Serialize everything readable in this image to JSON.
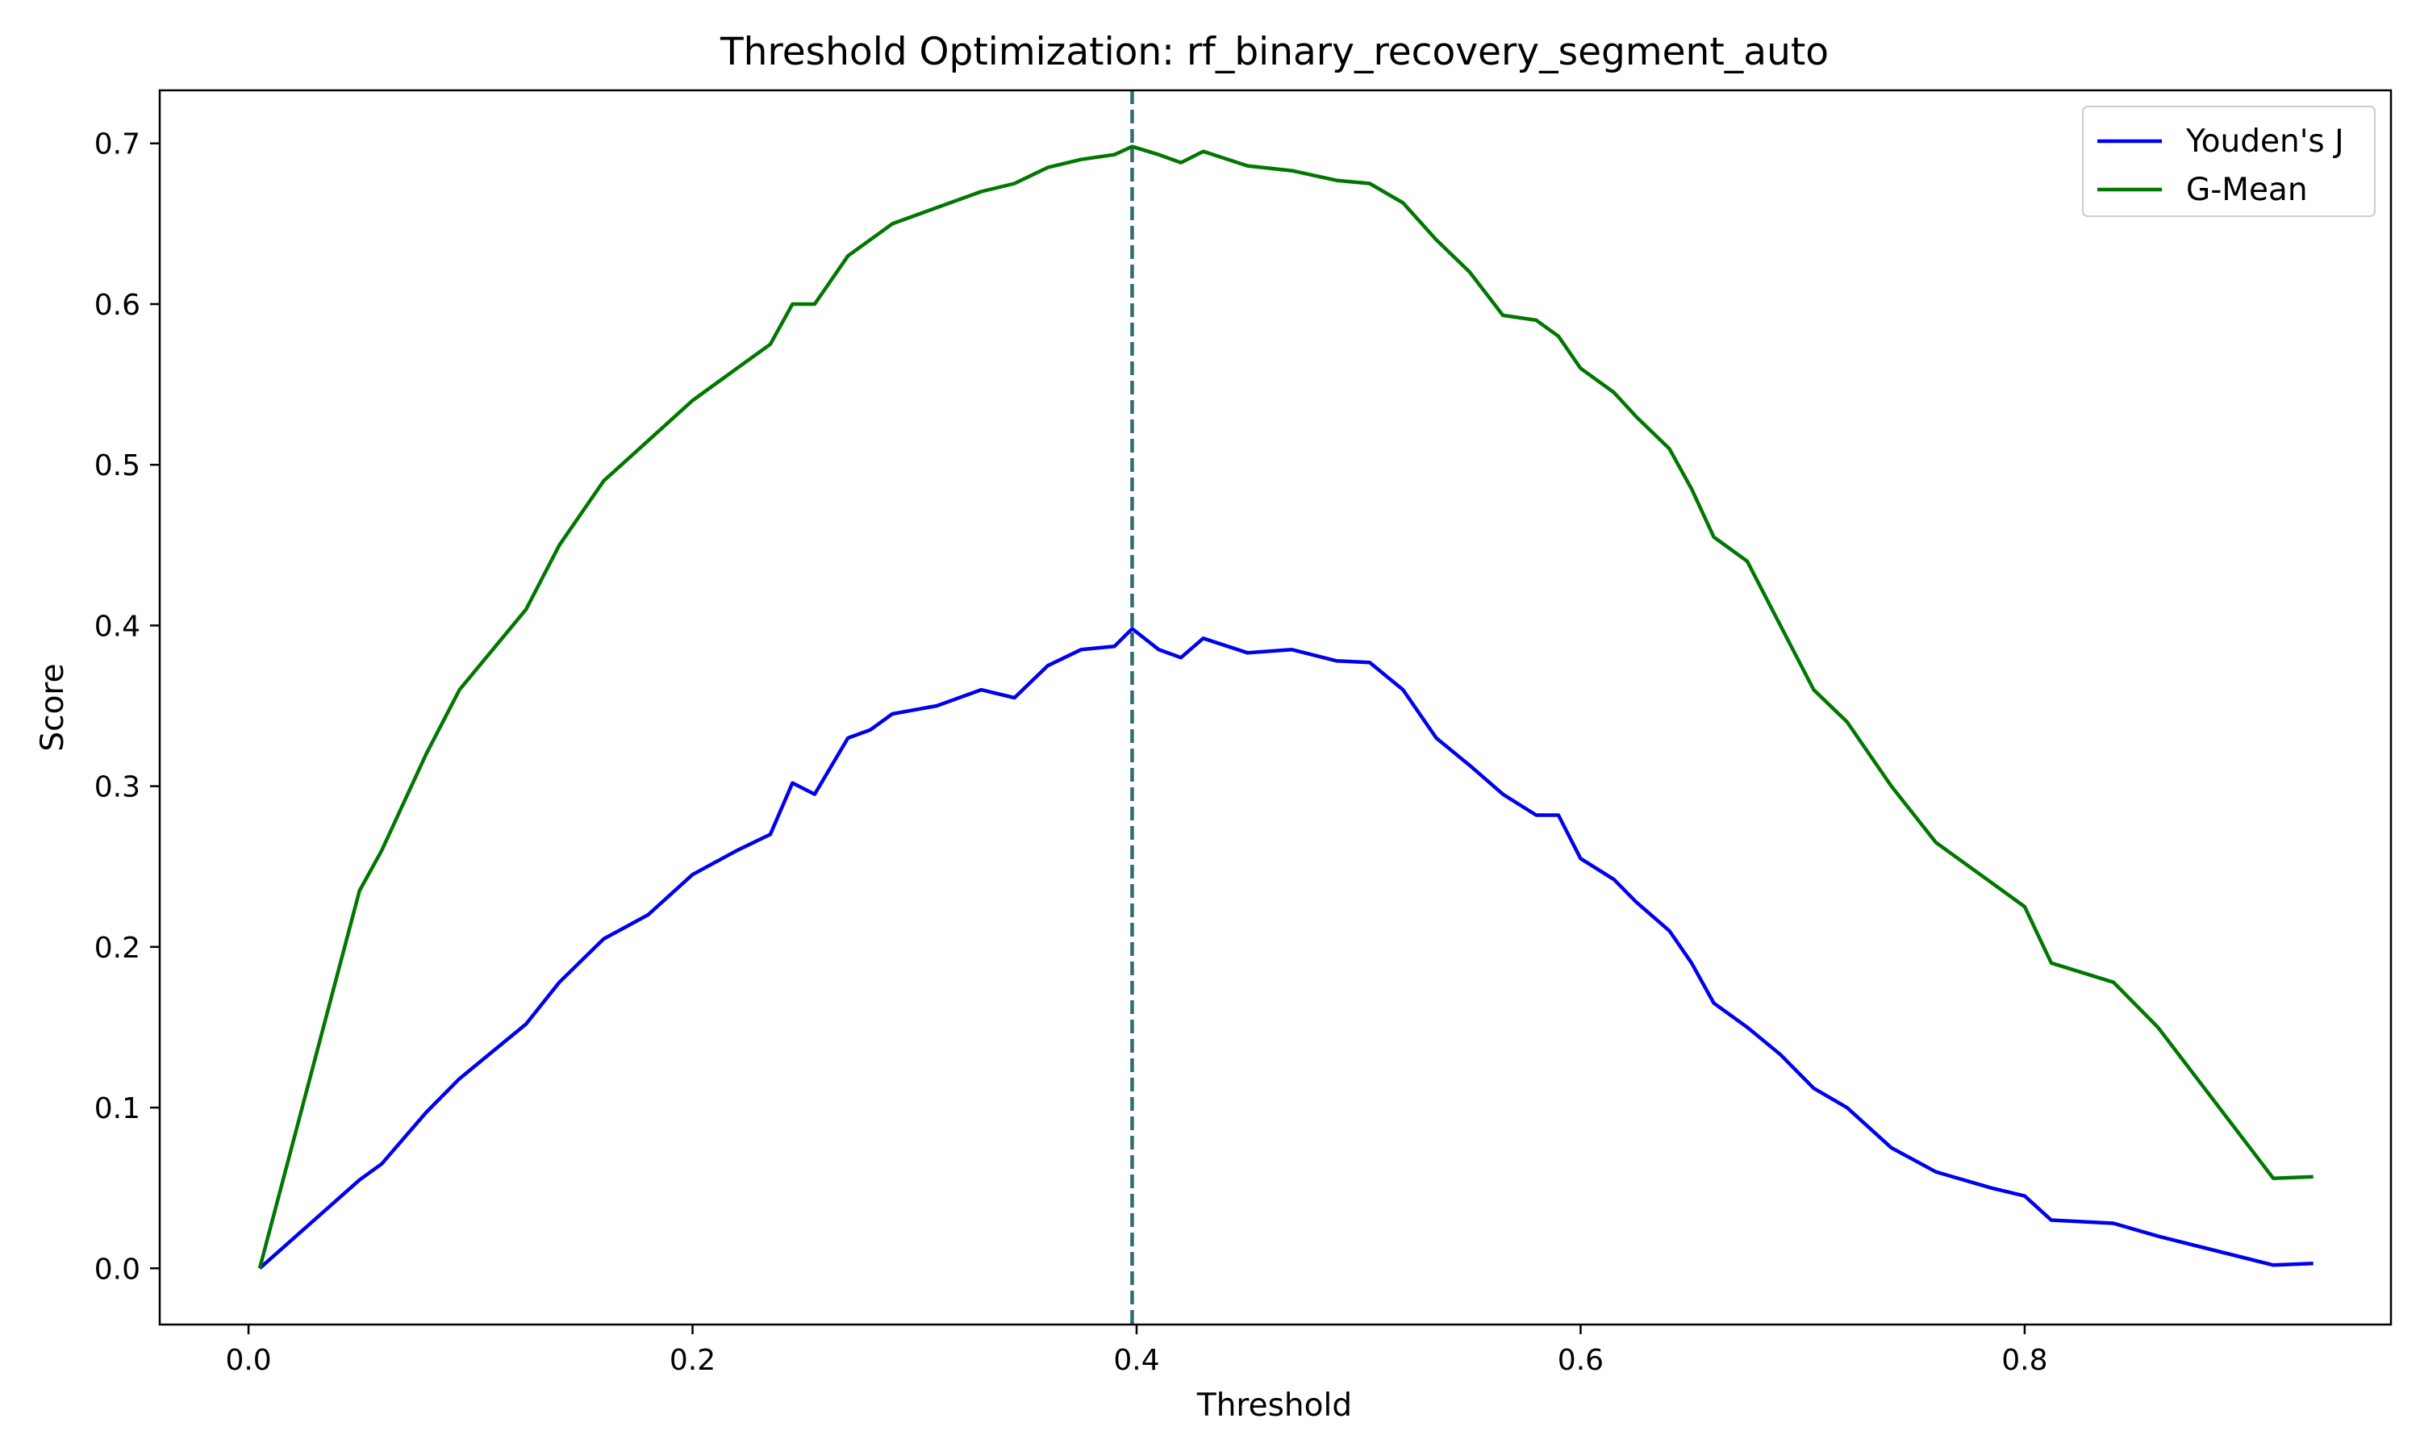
{
  "chart_data": {
    "type": "line",
    "title": "Threshold Optimization: rf_binary_recovery_segment_auto",
    "xlabel": "Threshold",
    "ylabel": "Score",
    "xlim": [
      -0.04,
      0.965
    ],
    "ylim": [
      -0.035,
      0.733
    ],
    "x_ticks": [
      0.0,
      0.2,
      0.4,
      0.6,
      0.8
    ],
    "x_tick_labels": [
      "0.0",
      "0.2",
      "0.4",
      "0.6",
      "0.8"
    ],
    "y_ticks": [
      0.0,
      0.1,
      0.2,
      0.3,
      0.4,
      0.5,
      0.6,
      0.7
    ],
    "y_tick_labels": [
      "0.0",
      "0.1",
      "0.2",
      "0.3",
      "0.4",
      "0.5",
      "0.6",
      "0.7"
    ],
    "grid": false,
    "legend_position": "top-right",
    "optimal_threshold": 0.398,
    "optimal_line_color": "#2f6f6a",
    "series": [
      {
        "name": "Youden's J",
        "color": "#0000ee",
        "points": [
          [
            0.005,
            0.0
          ],
          [
            0.05,
            0.055
          ],
          [
            0.06,
            0.065
          ],
          [
            0.08,
            0.097
          ],
          [
            0.095,
            0.118
          ],
          [
            0.125,
            0.152
          ],
          [
            0.14,
            0.178
          ],
          [
            0.16,
            0.205
          ],
          [
            0.18,
            0.22
          ],
          [
            0.2,
            0.245
          ],
          [
            0.22,
            0.26
          ],
          [
            0.235,
            0.27
          ],
          [
            0.245,
            0.302
          ],
          [
            0.255,
            0.295
          ],
          [
            0.27,
            0.33
          ],
          [
            0.28,
            0.335
          ],
          [
            0.29,
            0.345
          ],
          [
            0.31,
            0.35
          ],
          [
            0.33,
            0.36
          ],
          [
            0.345,
            0.355
          ],
          [
            0.36,
            0.375
          ],
          [
            0.375,
            0.385
          ],
          [
            0.39,
            0.387
          ],
          [
            0.398,
            0.398
          ],
          [
            0.41,
            0.385
          ],
          [
            0.42,
            0.38
          ],
          [
            0.43,
            0.392
          ],
          [
            0.45,
            0.383
          ],
          [
            0.47,
            0.385
          ],
          [
            0.49,
            0.378
          ],
          [
            0.505,
            0.377
          ],
          [
            0.52,
            0.36
          ],
          [
            0.535,
            0.33
          ],
          [
            0.55,
            0.313
          ],
          [
            0.565,
            0.295
          ],
          [
            0.58,
            0.282
          ],
          [
            0.59,
            0.282
          ],
          [
            0.6,
            0.255
          ],
          [
            0.615,
            0.242
          ],
          [
            0.625,
            0.228
          ],
          [
            0.64,
            0.21
          ],
          [
            0.65,
            0.19
          ],
          [
            0.66,
            0.165
          ],
          [
            0.675,
            0.15
          ],
          [
            0.69,
            0.133
          ],
          [
            0.705,
            0.112
          ],
          [
            0.72,
            0.1
          ],
          [
            0.74,
            0.075
          ],
          [
            0.76,
            0.06
          ],
          [
            0.785,
            0.05
          ],
          [
            0.8,
            0.045
          ],
          [
            0.812,
            0.03
          ],
          [
            0.84,
            0.028
          ],
          [
            0.86,
            0.02
          ],
          [
            0.912,
            0.002
          ],
          [
            0.93,
            0.003
          ]
        ]
      },
      {
        "name": "G-Mean",
        "color": "#007700",
        "points": [
          [
            0.005,
            0.0
          ],
          [
            0.05,
            0.235
          ],
          [
            0.06,
            0.26
          ],
          [
            0.08,
            0.32
          ],
          [
            0.095,
            0.36
          ],
          [
            0.125,
            0.41
          ],
          [
            0.14,
            0.45
          ],
          [
            0.16,
            0.49
          ],
          [
            0.18,
            0.515
          ],
          [
            0.2,
            0.54
          ],
          [
            0.22,
            0.56
          ],
          [
            0.235,
            0.575
          ],
          [
            0.245,
            0.6
          ],
          [
            0.255,
            0.6
          ],
          [
            0.27,
            0.63
          ],
          [
            0.28,
            0.64
          ],
          [
            0.29,
            0.65
          ],
          [
            0.31,
            0.66
          ],
          [
            0.33,
            0.67
          ],
          [
            0.345,
            0.675
          ],
          [
            0.36,
            0.685
          ],
          [
            0.375,
            0.69
          ],
          [
            0.39,
            0.693
          ],
          [
            0.398,
            0.698
          ],
          [
            0.41,
            0.693
          ],
          [
            0.42,
            0.688
          ],
          [
            0.43,
            0.695
          ],
          [
            0.45,
            0.686
          ],
          [
            0.47,
            0.683
          ],
          [
            0.49,
            0.677
          ],
          [
            0.505,
            0.675
          ],
          [
            0.52,
            0.663
          ],
          [
            0.535,
            0.64
          ],
          [
            0.55,
            0.62
          ],
          [
            0.565,
            0.593
          ],
          [
            0.58,
            0.59
          ],
          [
            0.59,
            0.58
          ],
          [
            0.6,
            0.56
          ],
          [
            0.615,
            0.545
          ],
          [
            0.625,
            0.53
          ],
          [
            0.64,
            0.51
          ],
          [
            0.65,
            0.485
          ],
          [
            0.66,
            0.455
          ],
          [
            0.675,
            0.44
          ],
          [
            0.69,
            0.4
          ],
          [
            0.705,
            0.36
          ],
          [
            0.72,
            0.34
          ],
          [
            0.74,
            0.3
          ],
          [
            0.76,
            0.265
          ],
          [
            0.785,
            0.24
          ],
          [
            0.8,
            0.225
          ],
          [
            0.812,
            0.19
          ],
          [
            0.84,
            0.178
          ],
          [
            0.86,
            0.15
          ],
          [
            0.912,
            0.056
          ],
          [
            0.93,
            0.057
          ]
        ]
      }
    ]
  }
}
